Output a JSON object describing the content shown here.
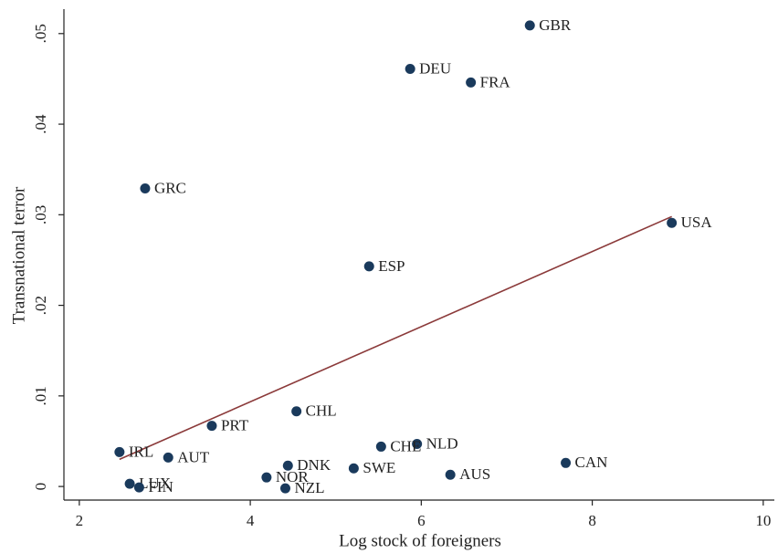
{
  "chart_data": {
    "type": "scatter",
    "xlabel": "Log stock of foreigners",
    "ylabel": "Transnational terror",
    "labels": [
      "GBR",
      "DEU",
      "FRA",
      "GRC",
      "USA",
      "ESP",
      "CHL",
      "PRT",
      "NLD",
      "CHE",
      "IRL",
      "AUT",
      "CAN",
      "DNK",
      "SWE",
      "AUS",
      "NOR",
      "LUX",
      "NZL",
      "FIN"
    ],
    "x": [
      7.27,
      5.87,
      6.58,
      2.77,
      8.93,
      5.39,
      4.54,
      3.55,
      5.95,
      5.53,
      2.47,
      3.04,
      7.69,
      4.44,
      5.21,
      6.34,
      4.19,
      2.59,
      4.41,
      2.7
    ],
    "y": [
      0.0509,
      0.0461,
      0.0446,
      0.0329,
      0.0291,
      0.0243,
      0.0083,
      0.0067,
      0.0047,
      0.0044,
      0.0038,
      0.0032,
      0.0026,
      0.0023,
      0.002,
      0.0013,
      0.001,
      0.0003,
      -0.0002,
      -0.0001
    ],
    "color": "#1a3a5c",
    "fit_line": {
      "x": [
        2.47,
        8.93
      ],
      "y": [
        0.003,
        0.0298
      ],
      "color": "#8b3a3a"
    },
    "xlim": [
      1.82,
      10.13
    ],
    "ylim": [
      -0.0015,
      0.0527
    ],
    "xticks": [
      2,
      4,
      6,
      8,
      10
    ],
    "yticks": [
      0,
      {
        "value": 0.01,
        "label": ".01"
      },
      {
        "value": 0.02,
        "label": ".02"
      },
      {
        "value": 0.03,
        "label": ".03"
      },
      {
        "value": 0.04,
        "label": ".04"
      },
      {
        "value": 0.05,
        "label": ".05"
      }
    ],
    "grid": false
  }
}
